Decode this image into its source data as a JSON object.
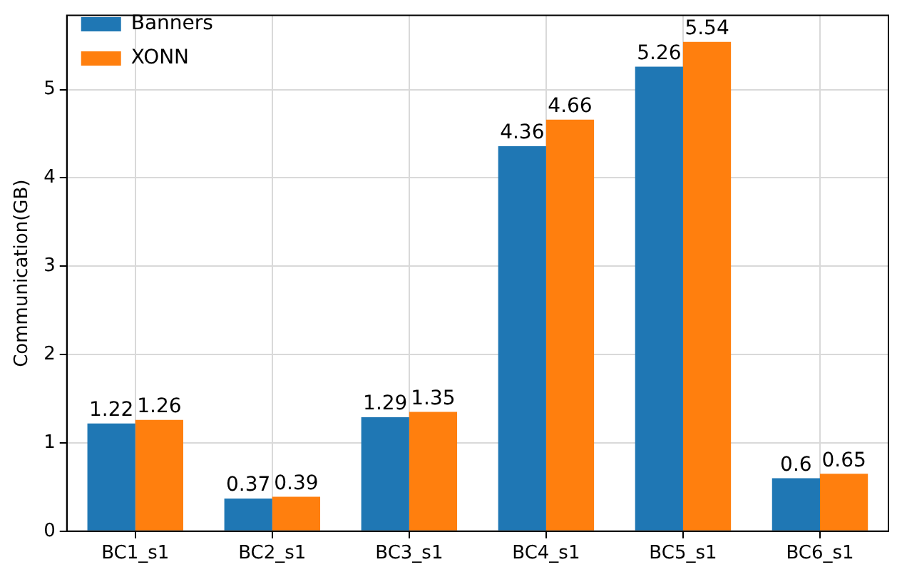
{
  "chart_data": {
    "type": "bar",
    "ylabel": "Communication(GB)",
    "categories": [
      "BC1_s1",
      "BC2_s1",
      "BC3_s1",
      "BC4_s1",
      "BC5_s1",
      "BC6_s1"
    ],
    "series": [
      {
        "name": "Banners",
        "color": "#1f77b4",
        "values": [
          1.22,
          0.37,
          1.29,
          4.36,
          5.26,
          0.6
        ]
      },
      {
        "name": "XONN",
        "color": "#ff7f0e",
        "values": [
          1.26,
          0.39,
          1.35,
          4.66,
          5.54,
          0.65
        ]
      }
    ],
    "ylim": [
      0,
      5.84
    ],
    "yticks": [
      0,
      1,
      2,
      3,
      4,
      5
    ],
    "grid": true,
    "legend": "top left",
    "data_labels": true
  }
}
